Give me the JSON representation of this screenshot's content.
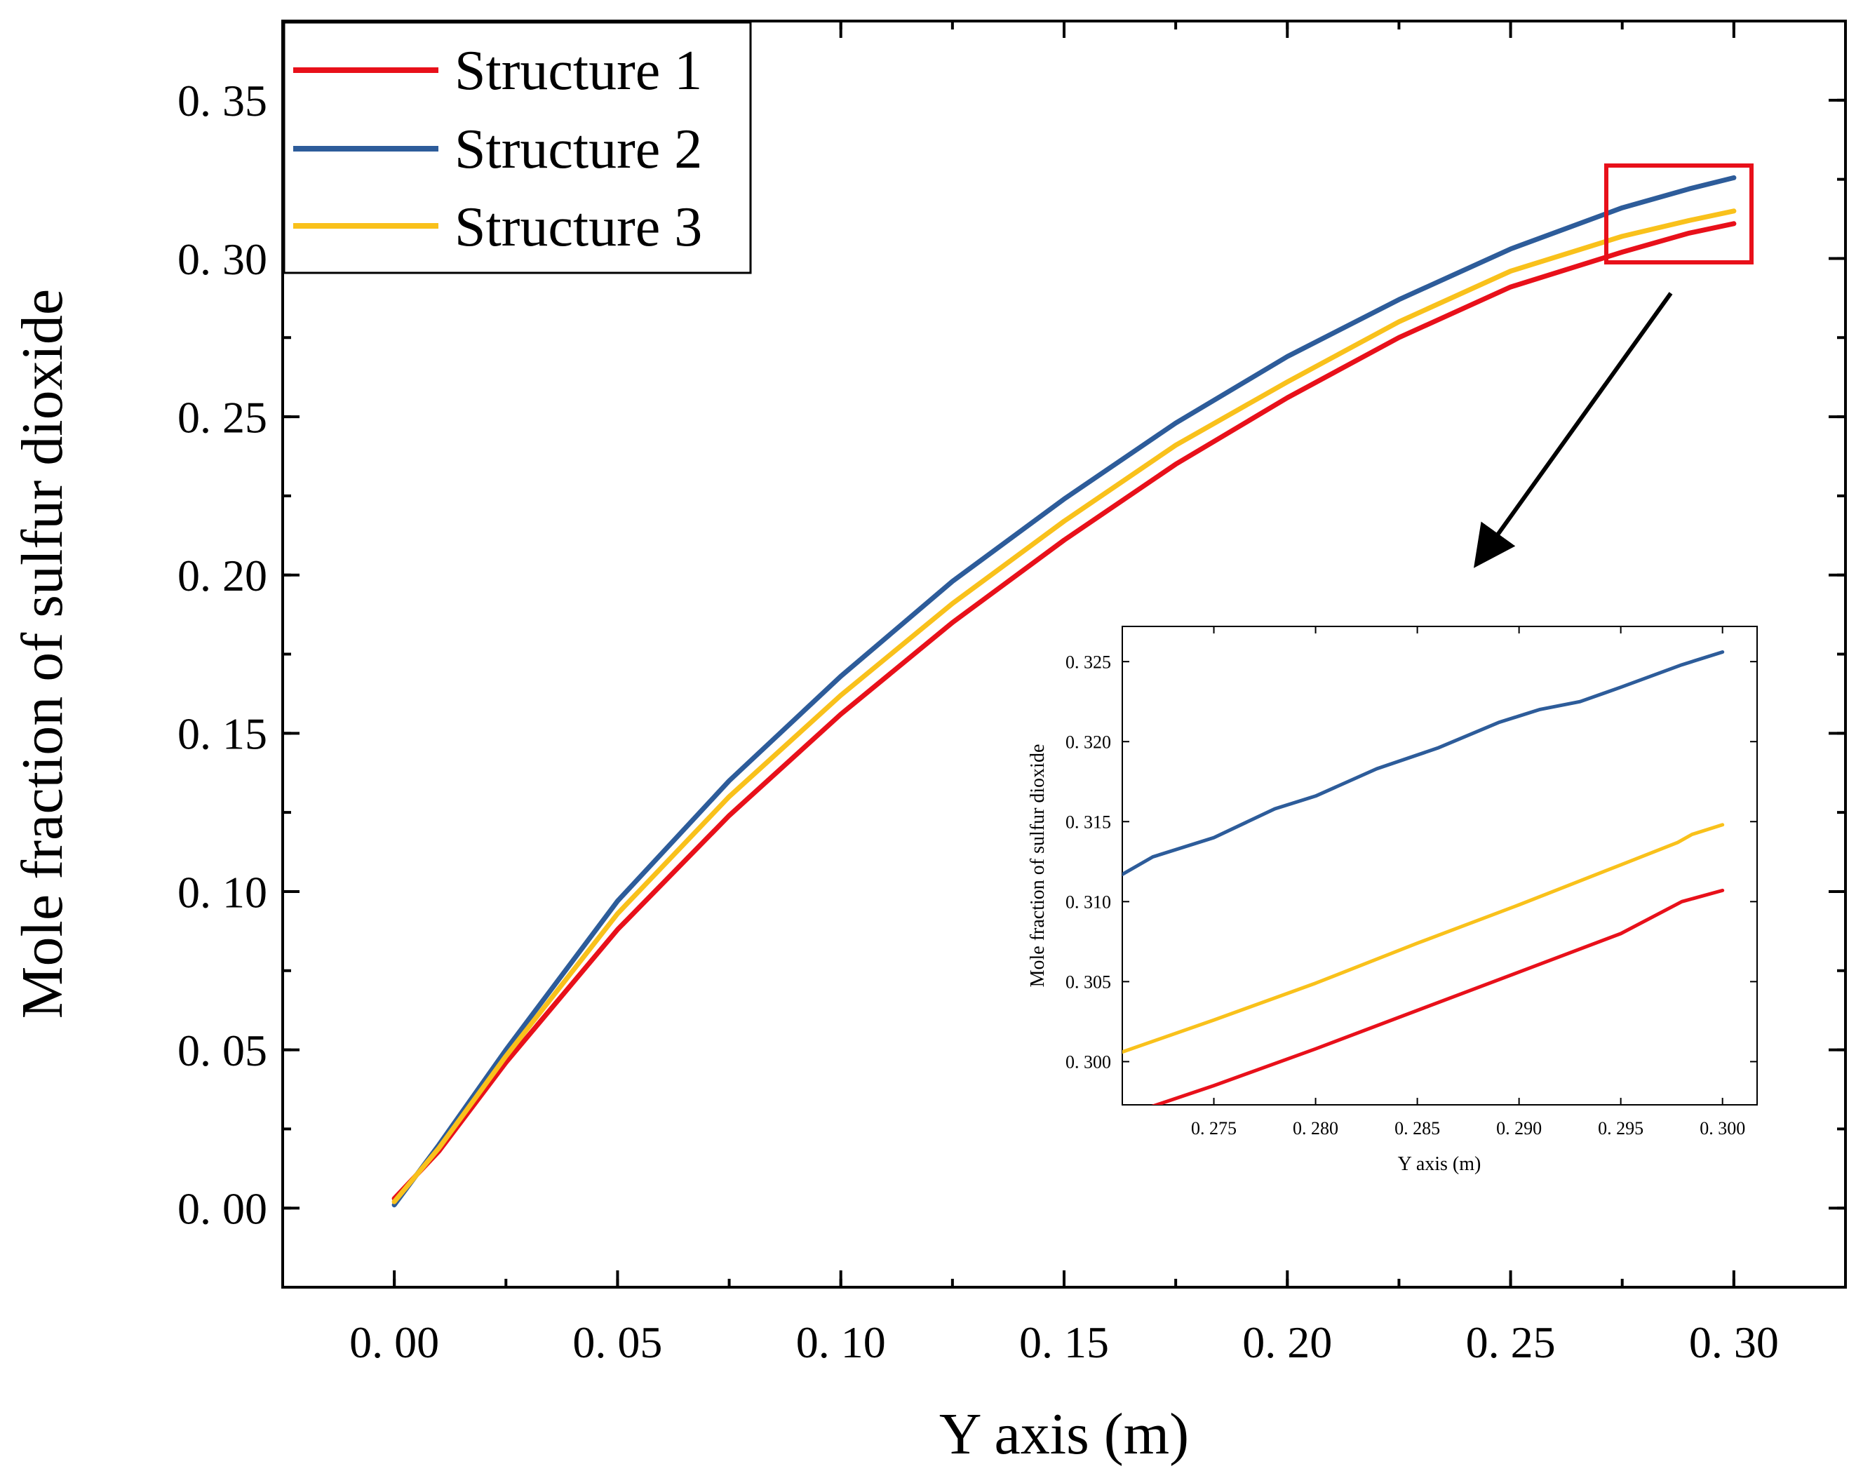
{
  "chart_data": [
    {
      "id": "main",
      "type": "line",
      "title": "",
      "xlabel": "Y axis (m)",
      "ylabel": "Mole fraction of sulfur dioxide",
      "xlim": [
        -0.025,
        0.325
      ],
      "ylim": [
        -0.025,
        0.375
      ],
      "xticks": [
        0.0,
        0.05,
        0.1,
        0.15,
        0.2,
        0.25,
        0.3
      ],
      "xtick_labels": [
        "0. 00",
        "0. 05",
        "0. 10",
        "0. 15",
        "0. 20",
        "0. 25",
        "0. 30"
      ],
      "yticks": [
        0.0,
        0.05,
        0.1,
        0.15,
        0.2,
        0.25,
        0.3,
        0.35
      ],
      "ytick_labels": [
        "0. 00",
        "0. 05",
        "0. 10",
        "0. 15",
        "0. 20",
        "0. 25",
        "0. 30",
        "0. 35"
      ],
      "legend": "top-left",
      "grid": false,
      "series": [
        {
          "name": "Structure 1",
          "color": "#e8101a",
          "x": [
            0.0,
            0.01,
            0.025,
            0.05,
            0.075,
            0.1,
            0.125,
            0.15,
            0.175,
            0.2,
            0.225,
            0.25,
            0.275,
            0.29,
            0.3
          ],
          "y": [
            0.003,
            0.018,
            0.046,
            0.088,
            0.124,
            0.156,
            0.185,
            0.211,
            0.235,
            0.256,
            0.275,
            0.291,
            0.302,
            0.308,
            0.311
          ]
        },
        {
          "name": "Structure 2",
          "color": "#2d5c9a",
          "x": [
            0.0,
            0.01,
            0.025,
            0.05,
            0.075,
            0.1,
            0.125,
            0.15,
            0.175,
            0.2,
            0.225,
            0.25,
            0.275,
            0.29,
            0.3
          ],
          "y": [
            0.001,
            0.02,
            0.05,
            0.097,
            0.135,
            0.168,
            0.198,
            0.224,
            0.248,
            0.269,
            0.287,
            0.303,
            0.316,
            0.322,
            0.3255
          ]
        },
        {
          "name": "Structure 3",
          "color": "#f9c11b",
          "x": [
            0.0,
            0.01,
            0.025,
            0.05,
            0.075,
            0.1,
            0.125,
            0.15,
            0.175,
            0.2,
            0.225,
            0.25,
            0.275,
            0.29,
            0.3
          ],
          "y": [
            0.002,
            0.019,
            0.048,
            0.093,
            0.13,
            0.162,
            0.191,
            0.217,
            0.241,
            0.261,
            0.28,
            0.296,
            0.307,
            0.312,
            0.315
          ]
        }
      ]
    },
    {
      "id": "inset",
      "type": "line",
      "title": "",
      "xlabel": "Y axis (m)",
      "ylabel": "Mole fraction of sulfur dioxide",
      "xlim": [
        0.2705,
        0.3017
      ],
      "ylim": [
        0.2973,
        0.3272
      ],
      "xticks": [
        0.275,
        0.28,
        0.285,
        0.29,
        0.295,
        0.3
      ],
      "xtick_labels": [
        "0. 275",
        "0. 280",
        "0. 285",
        "0. 290",
        "0. 295",
        "0. 300"
      ],
      "yticks": [
        0.3,
        0.305,
        0.31,
        0.315,
        0.32,
        0.325
      ],
      "ytick_labels": [
        "0. 300",
        "0. 305",
        "0. 310",
        "0. 315",
        "0. 320",
        "0. 325"
      ],
      "grid": false,
      "series": [
        {
          "name": "Structure 1",
          "color": "#e8101a",
          "x": [
            0.2715,
            0.275,
            0.28,
            0.285,
            0.29,
            0.295,
            0.298,
            0.3
          ],
          "y": [
            0.297,
            0.2985,
            0.3008,
            0.3032,
            0.3056,
            0.308,
            0.31,
            0.3107
          ]
        },
        {
          "name": "Structure 2",
          "color": "#2d5c9a",
          "x": [
            0.2705,
            0.272,
            0.275,
            0.278,
            0.28,
            0.283,
            0.286,
            0.289,
            0.291,
            0.293,
            0.295,
            0.298,
            0.3
          ],
          "y": [
            0.3117,
            0.3128,
            0.314,
            0.3158,
            0.3166,
            0.3183,
            0.3196,
            0.3212,
            0.322,
            0.3225,
            0.3234,
            0.3248,
            0.3256
          ]
        },
        {
          "name": "Structure 3",
          "color": "#f9c11b",
          "x": [
            0.2705,
            0.275,
            0.28,
            0.285,
            0.29,
            0.295,
            0.2978,
            0.2985,
            0.3
          ],
          "y": [
            0.3006,
            0.3026,
            0.3049,
            0.3074,
            0.3098,
            0.3123,
            0.3137,
            0.3142,
            0.3148
          ]
        }
      ]
    }
  ],
  "colors": {
    "highlight_box": "#e8101a",
    "arrow": "#000000"
  }
}
